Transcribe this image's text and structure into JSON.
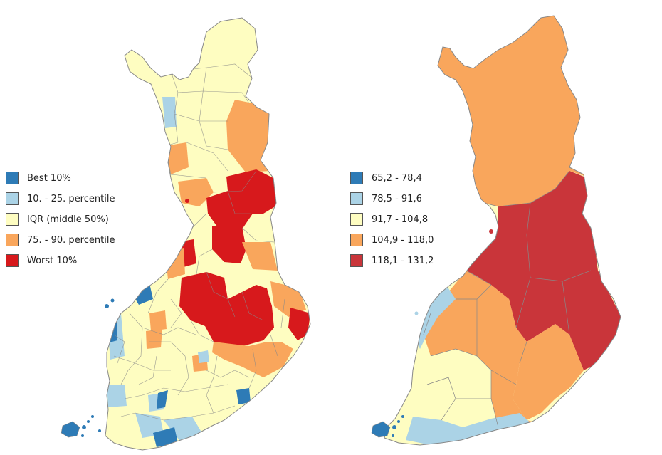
{
  "colors": {
    "blue_dark": "#2E7BB6",
    "blue_light": "#ABD3E6",
    "yellow": "#FEFDC1",
    "orange": "#F9A65C",
    "red_left": "#D7191C",
    "red_right": "#C9353A",
    "border": "#888888"
  },
  "left_map": {
    "legend": [
      {
        "label": "Best 10%",
        "color": "#2E7BB6"
      },
      {
        "label": "10. - 25. percentile",
        "color": "#ABD3E6"
      },
      {
        "label": "IQR (middle 50%)",
        "color": "#FEFDC1"
      },
      {
        "label": "75. - 90. percentile",
        "color": "#F9A65C"
      },
      {
        "label": "Worst 10%",
        "color": "#D7191C"
      }
    ]
  },
  "right_map": {
    "legend": [
      {
        "label": "65,2 - 78,4",
        "color": "#2E7BB6"
      },
      {
        "label": "78,5 - 91,6",
        "color": "#ABD3E6"
      },
      {
        "label": "91,7 - 104,8",
        "color": "#FEFDC1"
      },
      {
        "label": "104,9 - 118,0",
        "color": "#F9A65C"
      },
      {
        "label": "118,1 - 131,2",
        "color": "#C9353A"
      }
    ]
  }
}
